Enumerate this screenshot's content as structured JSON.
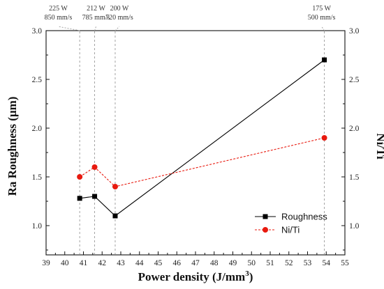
{
  "chart_data": {
    "type": "line",
    "xlabel": "Power density (J/mm",
    "xlabel_sup": "3",
    "xlabel_close": ")",
    "ylabel_left": "Ra Roughness (μm)",
    "ylabel_right": "Ni/Ti",
    "xlim": [
      39,
      55
    ],
    "ylim": [
      0.7,
      3.0
    ],
    "x_ticks": [
      "39",
      "40",
      "41",
      "42",
      "43",
      "44",
      "45",
      "46",
      "47",
      "48",
      "49",
      "50",
      "51",
      "52",
      "53",
      "54",
      "55"
    ],
    "y_ticks": [
      "1.0",
      "1.5",
      "2.0",
      "2.5",
      "3.0"
    ],
    "legend_position": "bottom-right",
    "series": [
      {
        "name": "Roughness",
        "color": "#000000",
        "marker": "square",
        "line": "solid",
        "points": [
          {
            "x": 40.8,
            "y": 1.28
          },
          {
            "x": 41.6,
            "y": 1.3
          },
          {
            "x": 42.7,
            "y": 1.1
          },
          {
            "x": 53.9,
            "y": 2.7
          }
        ]
      },
      {
        "name": "Ni/Ti",
        "color": "#e8190e",
        "marker": "circle",
        "line": "dashed",
        "points": [
          {
            "x": 40.8,
            "y": 1.5
          },
          {
            "x": 41.6,
            "y": 1.6
          },
          {
            "x": 42.7,
            "y": 1.4
          },
          {
            "x": 53.9,
            "y": 1.9
          }
        ]
      }
    ],
    "annotations": [
      {
        "x": 40.8,
        "power": "225 W",
        "speed": "850 mm/s"
      },
      {
        "x": 41.6,
        "power": "212 W",
        "speed": "785 mm/s"
      },
      {
        "x": 42.7,
        "power": "200 W",
        "speed": "720 mm/s"
      },
      {
        "x": 53.9,
        "power": "175 W",
        "speed": "500 mm/s"
      }
    ]
  }
}
